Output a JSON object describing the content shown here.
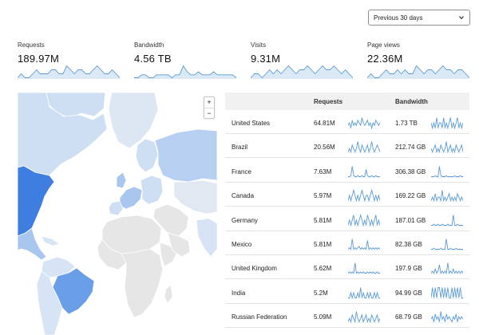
{
  "period": {
    "selected": "Previous 30 days"
  },
  "stats": [
    {
      "label": "Requests",
      "value": "189.97M",
      "trend": [
        5,
        6,
        5,
        5,
        6,
        7,
        6,
        6,
        6,
        7,
        7,
        6,
        6,
        8,
        7,
        6,
        7,
        7,
        6,
        6,
        7,
        8,
        7,
        6,
        6,
        7,
        6,
        5
      ]
    },
    {
      "label": "Bandwidth",
      "value": "4.56 TB",
      "trend": [
        5,
        5,
        6,
        6,
        5,
        5,
        6,
        6,
        6,
        6,
        5,
        6,
        6,
        9,
        7,
        6,
        6,
        7,
        6,
        6,
        6,
        7,
        6,
        6,
        6,
        6,
        6,
        5
      ]
    },
    {
      "label": "Visits",
      "value": "9.31M",
      "trend": [
        5,
        6,
        6,
        5,
        6,
        7,
        6,
        7,
        6,
        7,
        8,
        7,
        6,
        7,
        7,
        8,
        7,
        6,
        7,
        8,
        7,
        7,
        8,
        7,
        6,
        7,
        6,
        5
      ]
    },
    {
      "label": "Page views",
      "value": "22.36M",
      "trend": [
        6,
        7,
        6,
        6,
        7,
        8,
        7,
        7,
        8,
        7,
        8,
        7,
        7,
        9,
        8,
        7,
        8,
        8,
        7,
        8,
        9,
        8,
        8,
        7,
        8,
        8,
        7,
        6
      ]
    }
  ],
  "map": {
    "zoom_in_label": "+",
    "zoom_out_label": "−"
  },
  "table": {
    "columns": [
      "",
      "Requests",
      "Bandwidth"
    ],
    "rows": [
      {
        "country": "United States",
        "requests": "64.81M",
        "bandwidth": "1.73 TB",
        "req_spark": [
          5,
          6,
          4,
          7,
          5,
          6,
          5,
          7,
          6,
          5,
          8,
          6,
          5,
          6,
          7,
          5,
          6,
          4,
          6,
          5,
          7,
          6,
          5,
          6
        ],
        "bw_spark": [
          6,
          5,
          6,
          5,
          7,
          5,
          6,
          6,
          5,
          7,
          5,
          6,
          5,
          6,
          7,
          5,
          6,
          5,
          6,
          7,
          5,
          6,
          5,
          6
        ]
      },
      {
        "country": "Brazil",
        "requests": "20.56M",
        "bandwidth": "212.74 GB",
        "req_spark": [
          3,
          4,
          3,
          5,
          4,
          3,
          4,
          6,
          4,
          3,
          5,
          4,
          3,
          4,
          5,
          3,
          4,
          6,
          4,
          3,
          4,
          5,
          4,
          3
        ],
        "bw_spark": [
          4,
          3,
          4,
          5,
          3,
          4,
          3,
          5,
          4,
          3,
          4,
          6,
          3,
          4,
          5,
          3,
          4,
          3,
          5,
          4,
          3,
          4,
          5,
          3
        ]
      },
      {
        "country": "France",
        "requests": "7.63M",
        "bandwidth": "306.38 GB",
        "req_spark": [
          2,
          2,
          3,
          12,
          3,
          2,
          2,
          3,
          2,
          2,
          3,
          2,
          2,
          9,
          3,
          2,
          2,
          3,
          2,
          2,
          3,
          2,
          2,
          2
        ],
        "bw_spark": [
          2,
          2,
          2,
          3,
          2,
          2,
          13,
          3,
          2,
          2,
          2,
          3,
          2,
          2,
          2,
          2,
          2,
          3,
          2,
          2,
          2,
          3,
          2,
          2
        ]
      },
      {
        "country": "Canada",
        "requests": "5.97M",
        "bandwidth": "169.22 GB",
        "req_spark": [
          5,
          6,
          5,
          6,
          7,
          6,
          5,
          6,
          5,
          6,
          7,
          6,
          5,
          6,
          6,
          5,
          6,
          7,
          6,
          5,
          6,
          5,
          6,
          5
        ],
        "bw_spark": [
          5,
          6,
          5,
          7,
          5,
          6,
          6,
          5,
          8,
          5,
          6,
          5,
          6,
          7,
          5,
          6,
          5,
          6,
          5,
          7,
          6,
          5,
          6,
          5
        ]
      },
      {
        "country": "Germany",
        "requests": "5.81M",
        "bandwidth": "187.01 GB",
        "req_spark": [
          4,
          5,
          4,
          5,
          6,
          4,
          5,
          4,
          5,
          6,
          5,
          4,
          5,
          4,
          6,
          5,
          4,
          5,
          4,
          5,
          6,
          4,
          5,
          4
        ],
        "bw_spark": [
          3,
          3,
          4,
          3,
          3,
          4,
          3,
          3,
          4,
          3,
          3,
          3,
          4,
          3,
          3,
          3,
          12,
          3,
          3,
          4,
          3,
          3,
          3,
          3
        ]
      },
      {
        "country": "Mexico",
        "requests": "5.81M",
        "bandwidth": "82.38 GB",
        "req_spark": [
          3,
          4,
          3,
          10,
          3,
          4,
          3,
          4,
          5,
          3,
          4,
          3,
          4,
          3,
          9,
          3,
          4,
          3,
          4,
          3,
          4,
          3,
          4,
          3
        ],
        "bw_spark": [
          2,
          2,
          3,
          2,
          2,
          2,
          2,
          3,
          2,
          2,
          2,
          13,
          2,
          2,
          3,
          2,
          2,
          2,
          3,
          2,
          2,
          2,
          2,
          2
        ]
      },
      {
        "country": "United Kingdom",
        "requests": "5.62M",
        "bandwidth": "197.9 GB",
        "req_spark": [
          3,
          4,
          3,
          4,
          3,
          11,
          3,
          4,
          3,
          4,
          3,
          4,
          3,
          3,
          4,
          3,
          4,
          3,
          4,
          3,
          3,
          4,
          3,
          3
        ],
        "bw_spark": [
          4,
          5,
          4,
          6,
          4,
          5,
          8,
          4,
          5,
          4,
          5,
          4,
          9,
          4,
          5,
          4,
          6,
          4,
          5,
          4,
          5,
          4,
          5,
          4
        ]
      },
      {
        "country": "India",
        "requests": "5.2M",
        "bandwidth": "94.99 GB",
        "req_spark": [
          4,
          4,
          5,
          4,
          5,
          4,
          4,
          5,
          4,
          6,
          4,
          5,
          4,
          4,
          5,
          4,
          5,
          4,
          4,
          5,
          4,
          5,
          4,
          4
        ],
        "bw_spark": [
          3,
          4,
          3,
          4,
          3,
          4,
          4,
          3,
          4,
          3,
          4,
          3,
          4,
          3,
          3,
          4,
          3,
          4,
          3,
          4,
          3,
          4,
          3,
          3
        ]
      },
      {
        "country": "Russian Federation",
        "requests": "5.09M",
        "bandwidth": "68.79 GB",
        "req_spark": [
          5,
          6,
          5,
          7,
          6,
          5,
          8,
          6,
          5,
          6,
          7,
          5,
          6,
          7,
          5,
          6,
          5,
          7,
          6,
          5,
          6,
          7,
          5,
          6
        ],
        "bw_spark": [
          6,
          7,
          5,
          8,
          6,
          7,
          5,
          9,
          6,
          7,
          5,
          8,
          6,
          7,
          6,
          5,
          7,
          6,
          8,
          5,
          7,
          6,
          7,
          6
        ]
      }
    ]
  },
  "colors": {
    "accent": "#5b9bd5",
    "spark_fill": "#dbe9f7",
    "map_ocean": "#ffffff",
    "map_land": "#e6e6e6",
    "map_low": "#d6e4f5",
    "map_mid": "#a9c6ee",
    "map_high": "#6a9ee8",
    "map_top": "#3d7ee0"
  }
}
